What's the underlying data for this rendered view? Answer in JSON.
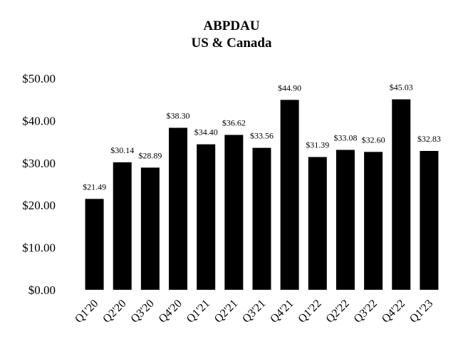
{
  "chart_data": {
    "type": "bar",
    "title": "ABPDAU",
    "subtitle": "US & Canada",
    "xlabel": "",
    "ylabel": "",
    "categories": [
      "Q1'20",
      "Q2'20",
      "Q3'20",
      "Q4'20",
      "Q1'21",
      "Q2'21",
      "Q3'21",
      "Q4'21",
      "Q1'22",
      "Q2'22",
      "Q3'22",
      "Q4'22",
      "Q1'23"
    ],
    "values": [
      21.49,
      30.14,
      28.89,
      38.3,
      34.4,
      36.62,
      33.56,
      44.9,
      31.39,
      33.08,
      32.6,
      45.03,
      32.83
    ],
    "data_labels": [
      "$21.49",
      "$30.14",
      "$28.89",
      "$38.30",
      "$34.40",
      "$36.62",
      "$33.56",
      "$44.90",
      "$31.39",
      "$33.08",
      "$32.60",
      "$45.03",
      "$32.83"
    ],
    "ylim": [
      0,
      50
    ],
    "y_ticks": [
      0,
      10,
      20,
      30,
      40,
      50
    ],
    "y_tick_labels": [
      "$0.00",
      "$10.00",
      "$20.00",
      "$30.00",
      "$40.00",
      "$50.00"
    ],
    "grid": false,
    "legend": "none",
    "bar_color": "#000000"
  }
}
